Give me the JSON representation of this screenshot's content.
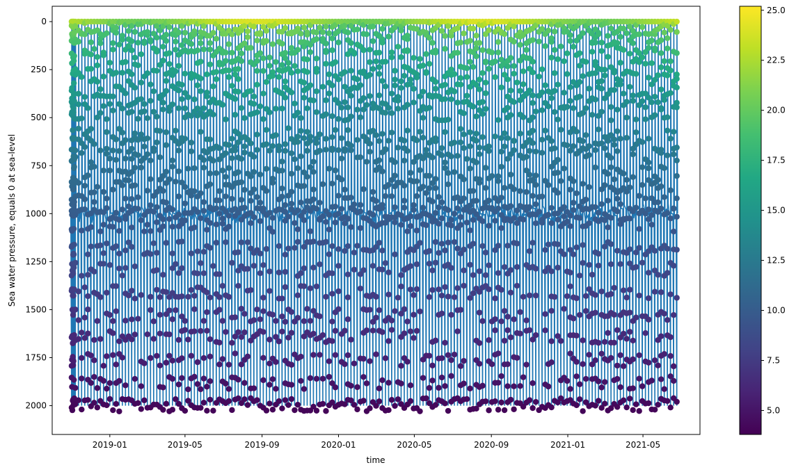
{
  "chart_data": {
    "type": "scatter",
    "title": "",
    "xlabel": "time",
    "ylabel": "Sea water pressure, equals 0 at sea-level",
    "xlim": [
      "2018-10-01",
      "2021-07-31"
    ],
    "ylim": [
      2150,
      -80
    ],
    "y_inverted": true,
    "x_ticks": [
      "2019-01",
      "2019-05",
      "2019-09",
      "2020-01",
      "2020-05",
      "2020-09",
      "2021-01",
      "2021-05"
    ],
    "y_ticks": [
      0,
      250,
      500,
      750,
      1000,
      1250,
      1500,
      1750,
      2000
    ],
    "line_color": "#1f77b4",
    "colormap": "viridis",
    "colorbar": {
      "min": 3.8,
      "max": 25.2,
      "ticks": [
        5.0,
        7.5,
        10.0,
        12.5,
        15.0,
        17.5,
        20.0,
        22.5,
        25.0
      ]
    },
    "profiles": {
      "start": "2018-11-01",
      "end": "2021-06-28",
      "interval_days": 5,
      "surface_pressure": 0,
      "max_pressure": 2000,
      "parking_pressure": 1000,
      "sample_pressures": [
        0,
        40,
        80,
        130,
        180,
        240,
        290,
        360,
        420,
        480,
        590,
        640,
        700,
        790,
        860,
        940,
        1060,
        1180,
        1290,
        1410,
        1530,
        1640,
        1760,
        1880,
        1990
      ],
      "temperature_at_surface": [
        20.5,
        24.0
      ],
      "temperature_at_1000": 10.0,
      "temperature_at_2000": 4.2
    }
  }
}
